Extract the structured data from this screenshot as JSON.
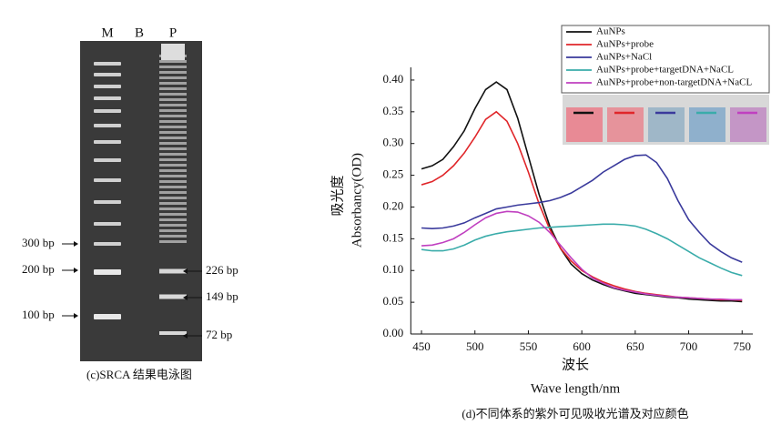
{
  "gel": {
    "lanes": [
      "M",
      "B",
      "P"
    ],
    "left_markers": [
      "300 bp",
      "200 bp",
      "100 bp"
    ],
    "right_markers": [
      "226 bp",
      "149 bp",
      "72 bp"
    ],
    "caption": "(c)SRCA 结果电泳图"
  },
  "chart_data": {
    "type": "line",
    "y_label_cn": "吸光度",
    "y_label": "Absorbancy(OD)",
    "x_label_cn": "波长",
    "x_label": "Wave length/nm",
    "caption": "(d)不同体系的紫外可见吸收光谱及对应颜色",
    "legend": "upper right",
    "x": [
      450,
      460,
      470,
      480,
      490,
      500,
      510,
      520,
      530,
      540,
      550,
      560,
      570,
      580,
      590,
      600,
      610,
      620,
      630,
      640,
      650,
      660,
      670,
      680,
      690,
      700,
      710,
      720,
      730,
      740,
      750
    ],
    "xlim": [
      440,
      760
    ],
    "xticks": [
      450,
      500,
      550,
      600,
      650,
      700,
      750
    ],
    "ylim": [
      0,
      0.42
    ],
    "yticks": [
      {
        "value": 0,
        "label": "0.00"
      },
      {
        "value": 0.05,
        "label": "0.05"
      },
      {
        "value": 0.1,
        "label": "0.10"
      },
      {
        "value": 0.15,
        "label": "0.15"
      },
      {
        "value": 0.2,
        "label": "0.20"
      },
      {
        "value": 0.25,
        "label": "0.25"
      },
      {
        "value": 0.3,
        "label": "0.30"
      },
      {
        "value": 0.35,
        "label": "0.35"
      },
      {
        "value": 0.4,
        "label": "0.40"
      }
    ],
    "series": [
      {
        "name": "AuNPs",
        "color": "#111111",
        "values": [
          0.26,
          0.265,
          0.275,
          0.295,
          0.32,
          0.355,
          0.385,
          0.397,
          0.385,
          0.34,
          0.28,
          0.22,
          0.17,
          0.135,
          0.11,
          0.095,
          0.085,
          0.078,
          0.072,
          0.068,
          0.064,
          0.062,
          0.06,
          0.058,
          0.057,
          0.055,
          0.054,
          0.053,
          0.052,
          0.052,
          0.051
        ]
      },
      {
        "name": "AuNPs+probe",
        "color": "#e0262a",
        "values": [
          0.235,
          0.24,
          0.25,
          0.265,
          0.285,
          0.31,
          0.338,
          0.35,
          0.335,
          0.3,
          0.255,
          0.205,
          0.165,
          0.135,
          0.115,
          0.1,
          0.09,
          0.082,
          0.076,
          0.071,
          0.067,
          0.064,
          0.062,
          0.06,
          0.058,
          0.057,
          0.056,
          0.055,
          0.054,
          0.054,
          0.053
        ]
      },
      {
        "name": "AuNPs+NaCl",
        "color": "#3a3a9c",
        "values": [
          0.167,
          0.166,
          0.167,
          0.17,
          0.175,
          0.183,
          0.19,
          0.197,
          0.2,
          0.203,
          0.205,
          0.207,
          0.21,
          0.215,
          0.222,
          0.232,
          0.242,
          0.255,
          0.265,
          0.275,
          0.281,
          0.282,
          0.27,
          0.245,
          0.21,
          0.18,
          0.16,
          0.142,
          0.13,
          0.12,
          0.113
        ]
      },
      {
        "name": "AuNPs+probe+targetDNA+NaCL",
        "color": "#3aacaa",
        "values": [
          0.133,
          0.131,
          0.131,
          0.134,
          0.14,
          0.148,
          0.154,
          0.158,
          0.161,
          0.163,
          0.165,
          0.167,
          0.168,
          0.169,
          0.17,
          0.171,
          0.172,
          0.173,
          0.173,
          0.172,
          0.17,
          0.165,
          0.158,
          0.15,
          0.14,
          0.13,
          0.12,
          0.112,
          0.104,
          0.097,
          0.092
        ]
      },
      {
        "name": "AuNPs+probe+non-targetDNA+NaCL",
        "color": "#c040c0",
        "values": [
          0.139,
          0.14,
          0.144,
          0.15,
          0.16,
          0.172,
          0.183,
          0.19,
          0.193,
          0.192,
          0.186,
          0.176,
          0.16,
          0.14,
          0.12,
          0.102,
          0.088,
          0.08,
          0.073,
          0.069,
          0.066,
          0.063,
          0.061,
          0.059,
          0.058,
          0.057,
          0.056,
          0.055,
          0.055,
          0.054,
          0.054
        ]
      }
    ]
  }
}
